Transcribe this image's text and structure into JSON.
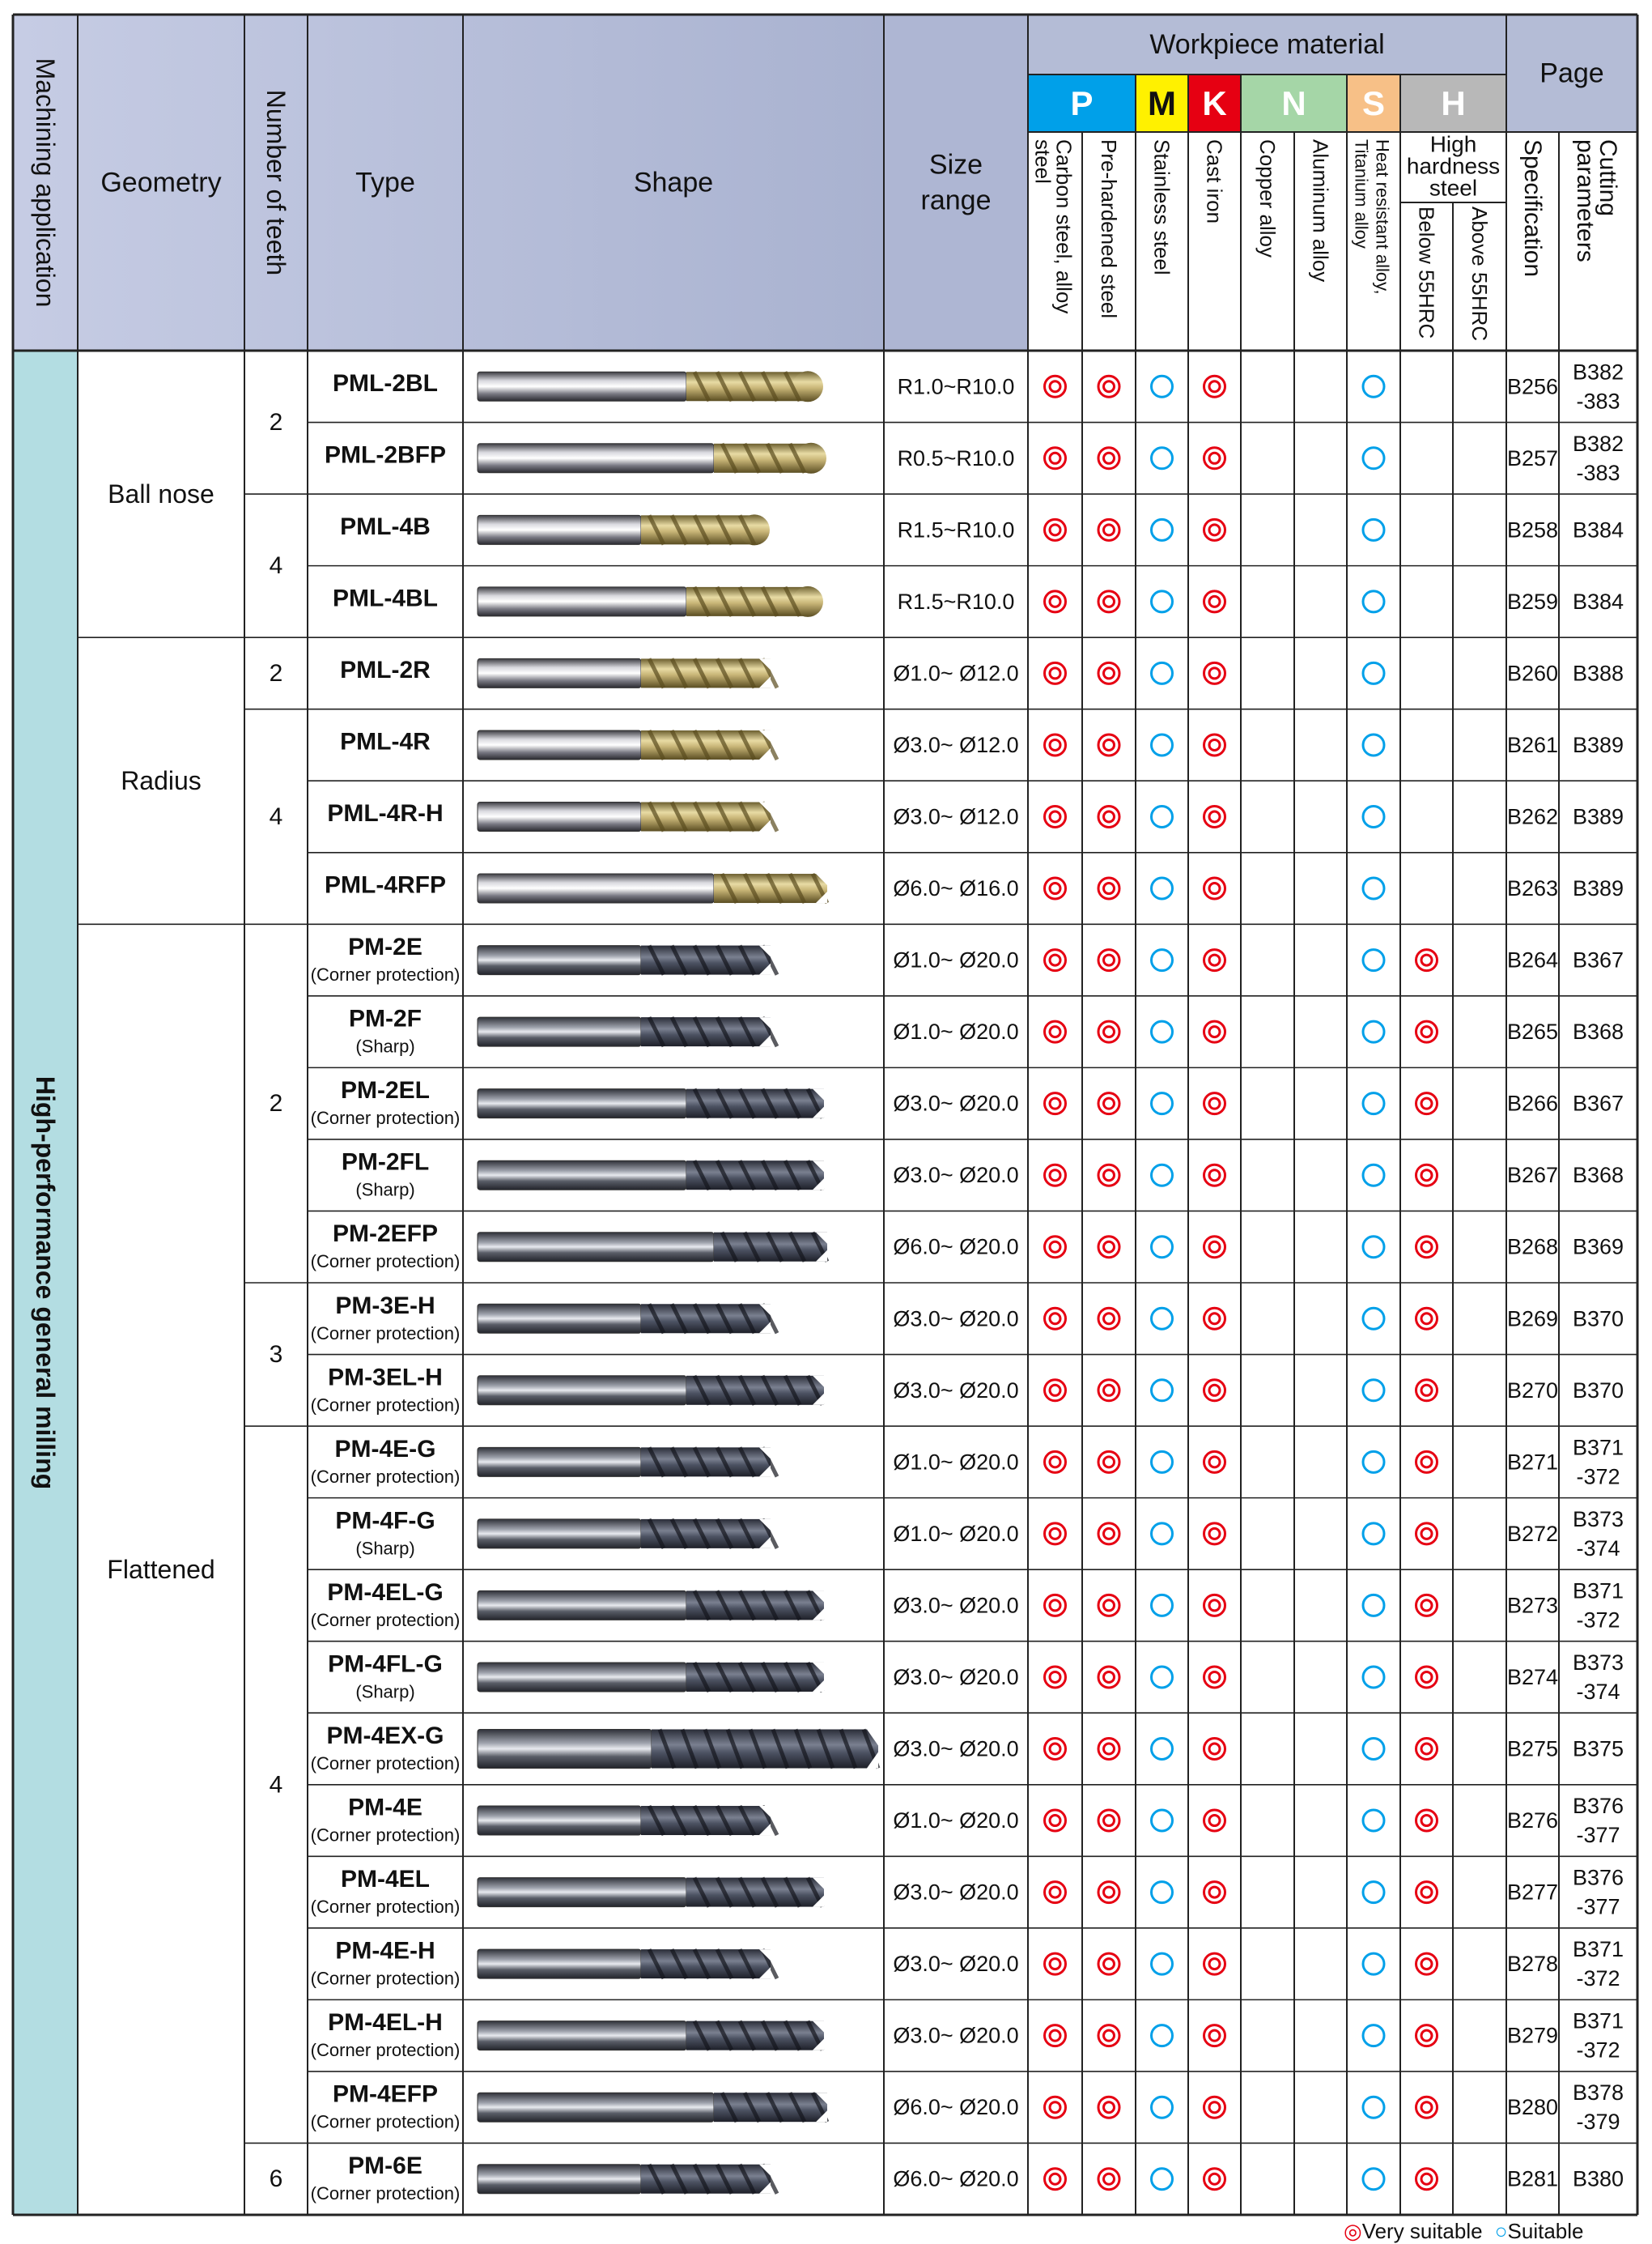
{
  "header": {
    "machining_application": "Machining application",
    "geometry": "Geometry",
    "number_of_teeth": "Number of teeth",
    "type": "Type",
    "shape": "Shape",
    "size_range_line1": "Size",
    "size_range_line2": "range",
    "workpiece_material": "Workpiece material",
    "page": "Page",
    "hh_line1": "High",
    "hh_line2": "hardness",
    "hh_line3": "steel",
    "specification": "Specification",
    "cutting_line1": "Cutting",
    "cutting_line2": "parameters",
    "iso_groups": [
      {
        "letter": "P",
        "color": "#00a0e9"
      },
      {
        "letter": "M",
        "color": "#fff100"
      },
      {
        "letter": "K",
        "color": "#e60012"
      },
      {
        "letter": "N",
        "color": "#a5d6a7"
      },
      {
        "letter": "S",
        "color": "#f7c087"
      },
      {
        "letter": "H",
        "color": "#b8b8b8"
      }
    ],
    "materials": [
      {
        "line1": "Carbon steel, alloy",
        "line2": "steel"
      },
      {
        "line1": "Pre-hardened steel",
        "line2": ""
      },
      {
        "line1": "Stainless steel",
        "line2": ""
      },
      {
        "line1": "Cast iron",
        "line2": ""
      },
      {
        "line1": "Copper alloy",
        "line2": ""
      },
      {
        "line1": "Aluminum  alloy",
        "line2": ""
      },
      {
        "line1": "Heat resistant alloy,",
        "line2": "Titanium alloy"
      },
      {
        "line1": "Below 55HRC",
        "line2": ""
      },
      {
        "line1": "Above 55HRC",
        "line2": ""
      }
    ]
  },
  "application_label": "High-performance general milling",
  "geometry_groups": [
    {
      "label": "Ball nose",
      "start": 0,
      "span": 4
    },
    {
      "label": "Radius",
      "start": 4,
      "span": 4
    },
    {
      "label": "Flattened",
      "start": 8,
      "span": 18
    }
  ],
  "teeth_groups": [
    {
      "label": "2",
      "start": 0,
      "span": 2
    },
    {
      "label": "4",
      "start": 2,
      "span": 2
    },
    {
      "label": "2",
      "start": 4,
      "span": 1
    },
    {
      "label": "4",
      "start": 5,
      "span": 3
    },
    {
      "label": "2",
      "start": 8,
      "span": 5
    },
    {
      "label": "3",
      "start": 13,
      "span": 2
    },
    {
      "label": "4",
      "start": 15,
      "span": 10
    },
    {
      "label": "6",
      "start": 25,
      "span": 1
    }
  ],
  "rows": [
    {
      "type": "PML-2BL",
      "note": "",
      "size": "R1.0~R10.0",
      "marks": [
        "vs",
        "vs",
        "s",
        "vs",
        "",
        "",
        "s",
        "",
        ""
      ],
      "spec": "B256",
      "cut": [
        "B382",
        "-383"
      ],
      "tool": "ball-gold-long"
    },
    {
      "type": "PML-2BFP",
      "note": "",
      "size": "R0.5~R10.0",
      "marks": [
        "vs",
        "vs",
        "s",
        "vs",
        "",
        "",
        "s",
        "",
        ""
      ],
      "spec": "B257",
      "cut": [
        "B382",
        "-383"
      ],
      "tool": "ball-gold-fp"
    },
    {
      "type": "PML-4B",
      "note": "",
      "size": "R1.5~R10.0",
      "marks": [
        "vs",
        "vs",
        "s",
        "vs",
        "",
        "",
        "s",
        "",
        ""
      ],
      "spec": "B258",
      "cut": [
        "B384"
      ],
      "tool": "ball-gold"
    },
    {
      "type": "PML-4BL",
      "note": "",
      "size": "R1.5~R10.0",
      "marks": [
        "vs",
        "vs",
        "s",
        "vs",
        "",
        "",
        "s",
        "",
        ""
      ],
      "spec": "B259",
      "cut": [
        "B384"
      ],
      "tool": "ball-gold-long"
    },
    {
      "type": "PML-2R",
      "note": "",
      "size": "Ø1.0~ Ø12.0",
      "marks": [
        "vs",
        "vs",
        "s",
        "vs",
        "",
        "",
        "s",
        "",
        ""
      ],
      "spec": "B260",
      "cut": [
        "B388"
      ],
      "tool": "flat-gold"
    },
    {
      "type": "PML-4R",
      "note": "",
      "size": "Ø3.0~ Ø12.0",
      "marks": [
        "vs",
        "vs",
        "s",
        "vs",
        "",
        "",
        "s",
        "",
        ""
      ],
      "spec": "B261",
      "cut": [
        "B389"
      ],
      "tool": "flat-gold"
    },
    {
      "type": "PML-4R-H",
      "note": "",
      "size": "Ø3.0~ Ø12.0",
      "marks": [
        "vs",
        "vs",
        "s",
        "vs",
        "",
        "",
        "s",
        "",
        ""
      ],
      "spec": "B262",
      "cut": [
        "B389"
      ],
      "tool": "flat-gold"
    },
    {
      "type": "PML-4RFP",
      "note": "",
      "size": "Ø6.0~ Ø16.0",
      "marks": [
        "vs",
        "vs",
        "s",
        "vs",
        "",
        "",
        "s",
        "",
        ""
      ],
      "spec": "B263",
      "cut": [
        "B389"
      ],
      "tool": "flat-gold-fp"
    },
    {
      "type": "PM-2E",
      "note": "(Corner protection)",
      "size": "Ø1.0~ Ø20.0",
      "marks": [
        "vs",
        "vs",
        "s",
        "vs",
        "",
        "",
        "s",
        "vs",
        ""
      ],
      "spec": "B264",
      "cut": [
        "B367"
      ],
      "tool": "flat-dark"
    },
    {
      "type": "PM-2F",
      "note": "(Sharp)",
      "size": "Ø1.0~ Ø20.0",
      "marks": [
        "vs",
        "vs",
        "s",
        "vs",
        "",
        "",
        "s",
        "vs",
        ""
      ],
      "spec": "B265",
      "cut": [
        "B368"
      ],
      "tool": "flat-dark"
    },
    {
      "type": "PM-2EL",
      "note": "(Corner protection)",
      "size": "Ø3.0~ Ø20.0",
      "marks": [
        "vs",
        "vs",
        "s",
        "vs",
        "",
        "",
        "s",
        "vs",
        ""
      ],
      "spec": "B266",
      "cut": [
        "B367"
      ],
      "tool": "flat-dark-long"
    },
    {
      "type": "PM-2FL",
      "note": "(Sharp)",
      "size": "Ø3.0~ Ø20.0",
      "marks": [
        "vs",
        "vs",
        "s",
        "vs",
        "",
        "",
        "s",
        "vs",
        ""
      ],
      "spec": "B267",
      "cut": [
        "B368"
      ],
      "tool": "flat-dark-long"
    },
    {
      "type": "PM-2EFP",
      "note": "(Corner protection)",
      "size": "Ø6.0~ Ø20.0",
      "marks": [
        "vs",
        "vs",
        "s",
        "vs",
        "",
        "",
        "s",
        "vs",
        ""
      ],
      "spec": "B268",
      "cut": [
        "B369"
      ],
      "tool": "flat-dark-fp"
    },
    {
      "type": "PM-3E-H",
      "note": "(Corner protection)",
      "size": "Ø3.0~ Ø20.0",
      "marks": [
        "vs",
        "vs",
        "s",
        "vs",
        "",
        "",
        "s",
        "vs",
        ""
      ],
      "spec": "B269",
      "cut": [
        "B370"
      ],
      "tool": "flat-dark"
    },
    {
      "type": "PM-3EL-H",
      "note": "(Corner protection)",
      "size": "Ø3.0~ Ø20.0",
      "marks": [
        "vs",
        "vs",
        "s",
        "vs",
        "",
        "",
        "s",
        "vs",
        ""
      ],
      "spec": "B270",
      "cut": [
        "B370"
      ],
      "tool": "flat-dark-long"
    },
    {
      "type": "PM-4E-G",
      "note": "(Corner protection)",
      "size": "Ø1.0~ Ø20.0",
      "marks": [
        "vs",
        "vs",
        "s",
        "vs",
        "",
        "",
        "s",
        "vs",
        ""
      ],
      "spec": "B271",
      "cut": [
        "B371",
        "-372"
      ],
      "tool": "flat-dark"
    },
    {
      "type": "PM-4F-G",
      "note": "(Sharp)",
      "size": "Ø1.0~ Ø20.0",
      "marks": [
        "vs",
        "vs",
        "s",
        "vs",
        "",
        "",
        "s",
        "vs",
        ""
      ],
      "spec": "B272",
      "cut": [
        "B373",
        "-374"
      ],
      "tool": "flat-dark"
    },
    {
      "type": "PM-4EL-G",
      "note": "(Corner protection)",
      "size": "Ø3.0~ Ø20.0",
      "marks": [
        "vs",
        "vs",
        "s",
        "vs",
        "",
        "",
        "s",
        "vs",
        ""
      ],
      "spec": "B273",
      "cut": [
        "B371",
        "-372"
      ],
      "tool": "flat-dark-long"
    },
    {
      "type": "PM-4FL-G",
      "note": "(Sharp)",
      "size": "Ø3.0~ Ø20.0",
      "marks": [
        "vs",
        "vs",
        "s",
        "vs",
        "",
        "",
        "s",
        "vs",
        ""
      ],
      "spec": "B274",
      "cut": [
        "B373",
        "-374"
      ],
      "tool": "flat-dark-long"
    },
    {
      "type": "PM-4EX-G",
      "note": "(Corner protection)",
      "size": "Ø3.0~ Ø20.0",
      "marks": [
        "vs",
        "vs",
        "s",
        "vs",
        "",
        "",
        "s",
        "vs",
        ""
      ],
      "spec": "B275",
      "cut": [
        "B375"
      ],
      "tool": "flat-dark-x"
    },
    {
      "type": "PM-4E",
      "note": "(Corner protection)",
      "size": "Ø1.0~ Ø20.0",
      "marks": [
        "vs",
        "vs",
        "s",
        "vs",
        "",
        "",
        "s",
        "vs",
        ""
      ],
      "spec": "B276",
      "cut": [
        "B376",
        "-377"
      ],
      "tool": "flat-dark"
    },
    {
      "type": "PM-4EL",
      "note": "(Corner protection)",
      "size": "Ø3.0~ Ø20.0",
      "marks": [
        "vs",
        "vs",
        "s",
        "vs",
        "",
        "",
        "s",
        "vs",
        ""
      ],
      "spec": "B277",
      "cut": [
        "B376",
        "-377"
      ],
      "tool": "flat-dark-long"
    },
    {
      "type": "PM-4E-H",
      "note": "(Corner protection)",
      "size": "Ø3.0~ Ø20.0",
      "marks": [
        "vs",
        "vs",
        "s",
        "vs",
        "",
        "",
        "s",
        "vs",
        ""
      ],
      "spec": "B278",
      "cut": [
        "B371",
        "-372"
      ],
      "tool": "flat-dark"
    },
    {
      "type": "PM-4EL-H",
      "note": "(Corner protection)",
      "size": "Ø3.0~ Ø20.0",
      "marks": [
        "vs",
        "vs",
        "s",
        "vs",
        "",
        "",
        "s",
        "vs",
        ""
      ],
      "spec": "B279",
      "cut": [
        "B371",
        "-372"
      ],
      "tool": "flat-dark-long"
    },
    {
      "type": "PM-4EFP",
      "note": "(Corner protection)",
      "size": "Ø6.0~ Ø20.0",
      "marks": [
        "vs",
        "vs",
        "s",
        "vs",
        "",
        "",
        "s",
        "vs",
        ""
      ],
      "spec": "B280",
      "cut": [
        "B378",
        "-379"
      ],
      "tool": "flat-dark-fp"
    },
    {
      "type": "PM-6E",
      "note": "(Corner protection)",
      "size": "Ø6.0~ Ø20.0",
      "marks": [
        "vs",
        "vs",
        "s",
        "vs",
        "",
        "",
        "s",
        "vs",
        ""
      ],
      "spec": "B281",
      "cut": [
        "B380"
      ],
      "tool": "flat-dark"
    }
  ],
  "legend": {
    "very_suitable": "Very suitable",
    "suitable": "Suitable"
  },
  "colors": {
    "header_fill": "#b4bcd6",
    "app_column": "#b3dde2",
    "very_suitable": "#e60012",
    "suitable": "#00a0e9",
    "grid": "#222222"
  }
}
